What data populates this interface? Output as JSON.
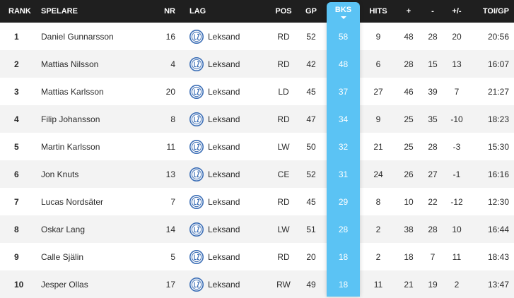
{
  "headers": {
    "rank": "RANK",
    "player": "SPELARE",
    "nr": "NR",
    "team": "LAG",
    "pos": "POS",
    "gp": "GP",
    "bks": "BKS",
    "hits": "HITS",
    "plus": "+",
    "minus": "-",
    "plusminus": "+/-",
    "toi": "TOI/GP"
  },
  "sorted_column": "BKS",
  "colors": {
    "header_bg": "#1f1f1f",
    "sort_column": "#5bc3f4",
    "row_alt": "#f3f3f3",
    "logo": "#3d6fb6"
  },
  "team_logo_icon": "leksand-crest-icon",
  "rows": [
    {
      "rank": "1",
      "player": "Daniel Gunnarsson",
      "nr": "16",
      "team": "Leksand",
      "pos": "RD",
      "gp": "52",
      "bks": "58",
      "hits": "9",
      "plus": "48",
      "minus": "28",
      "plusminus": "20",
      "toi": "20:56"
    },
    {
      "rank": "2",
      "player": "Mattias Nilsson",
      "nr": "4",
      "team": "Leksand",
      "pos": "RD",
      "gp": "42",
      "bks": "48",
      "hits": "6",
      "plus": "28",
      "minus": "15",
      "plusminus": "13",
      "toi": "16:07"
    },
    {
      "rank": "3",
      "player": "Mattias Karlsson",
      "nr": "20",
      "team": "Leksand",
      "pos": "LD",
      "gp": "45",
      "bks": "37",
      "hits": "27",
      "plus": "46",
      "minus": "39",
      "plusminus": "7",
      "toi": "21:27"
    },
    {
      "rank": "4",
      "player": "Filip Johansson",
      "nr": "8",
      "team": "Leksand",
      "pos": "RD",
      "gp": "47",
      "bks": "34",
      "hits": "9",
      "plus": "25",
      "minus": "35",
      "plusminus": "-10",
      "toi": "18:23"
    },
    {
      "rank": "5",
      "player": "Martin Karlsson",
      "nr": "11",
      "team": "Leksand",
      "pos": "LW",
      "gp": "50",
      "bks": "32",
      "hits": "21",
      "plus": "25",
      "minus": "28",
      "plusminus": "-3",
      "toi": "15:30"
    },
    {
      "rank": "6",
      "player": "Jon Knuts",
      "nr": "13",
      "team": "Leksand",
      "pos": "CE",
      "gp": "52",
      "bks": "31",
      "hits": "24",
      "plus": "26",
      "minus": "27",
      "plusminus": "-1",
      "toi": "16:16"
    },
    {
      "rank": "7",
      "player": "Lucas Nordsäter",
      "nr": "7",
      "team": "Leksand",
      "pos": "RD",
      "gp": "45",
      "bks": "29",
      "hits": "8",
      "plus": "10",
      "minus": "22",
      "plusminus": "-12",
      "toi": "12:30"
    },
    {
      "rank": "8",
      "player": "Oskar Lang",
      "nr": "14",
      "team": "Leksand",
      "pos": "LW",
      "gp": "51",
      "bks": "28",
      "hits": "2",
      "plus": "38",
      "minus": "28",
      "plusminus": "10",
      "toi": "16:44"
    },
    {
      "rank": "9",
      "player": "Calle Själin",
      "nr": "5",
      "team": "Leksand",
      "pos": "RD",
      "gp": "20",
      "bks": "18",
      "hits": "2",
      "plus": "18",
      "minus": "7",
      "plusminus": "11",
      "toi": "18:43"
    },
    {
      "rank": "10",
      "player": "Jesper Ollas",
      "nr": "17",
      "team": "Leksand",
      "pos": "RW",
      "gp": "49",
      "bks": "18",
      "hits": "11",
      "plus": "21",
      "minus": "19",
      "plusminus": "2",
      "toi": "13:47"
    }
  ]
}
